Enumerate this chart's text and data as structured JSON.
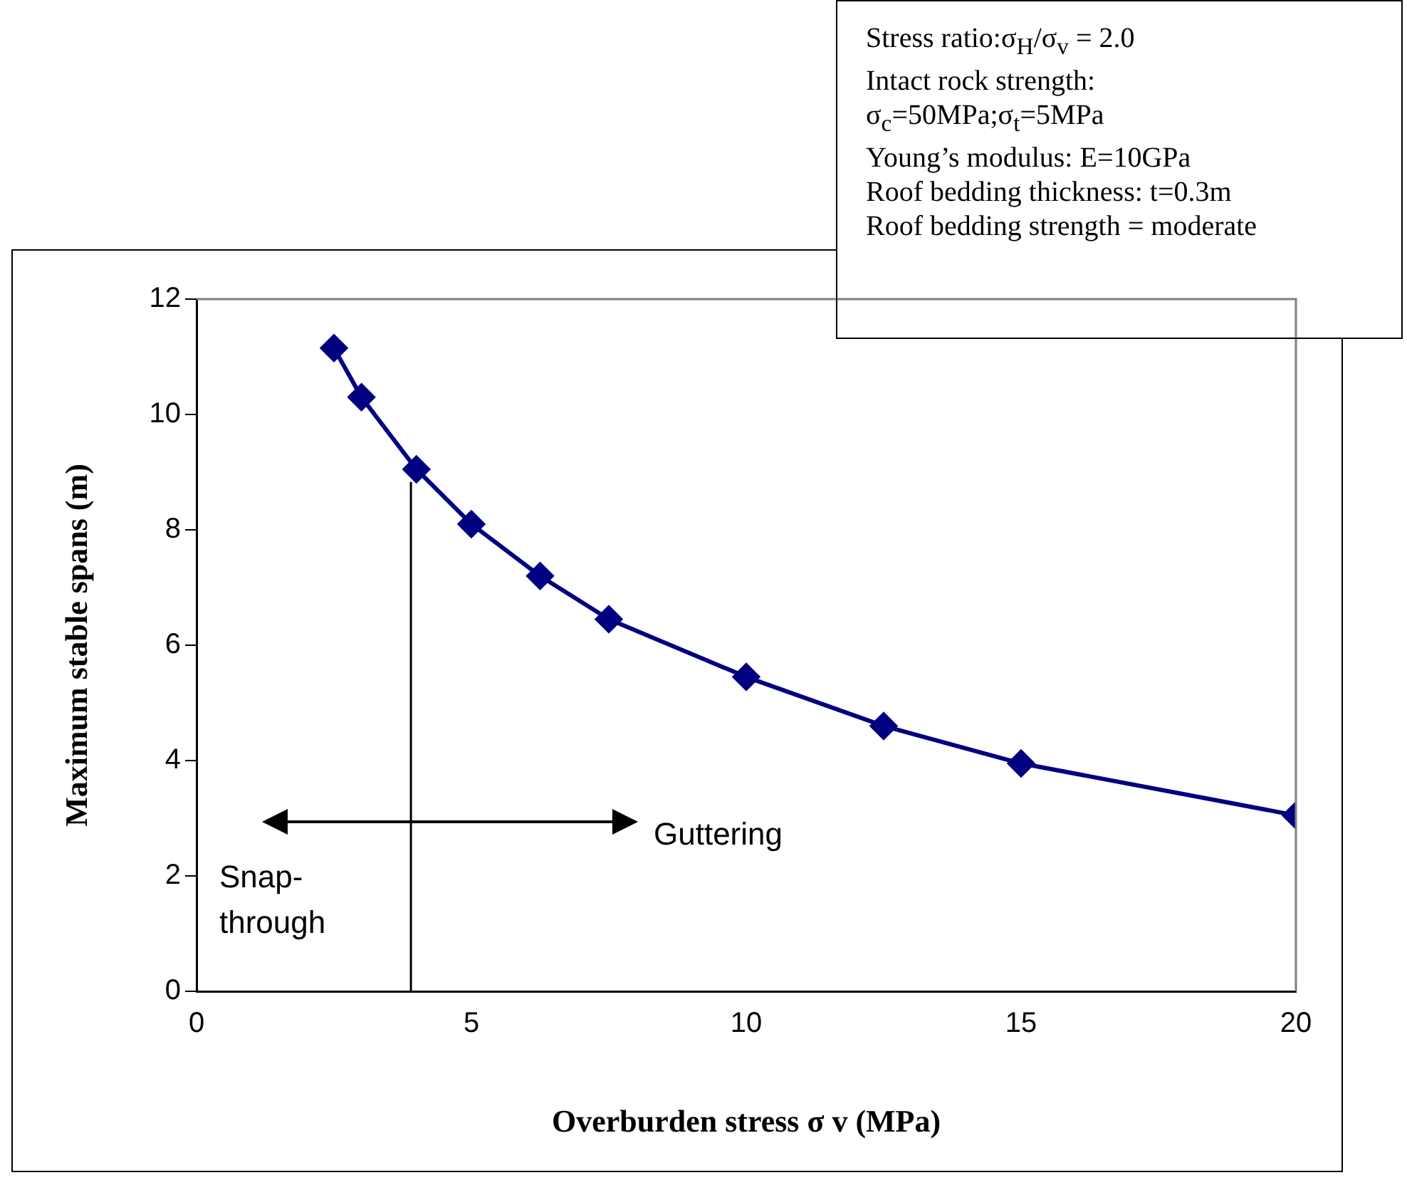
{
  "chart_data": {
    "type": "line",
    "xlabel": "Overburden stress σ v (MPa)",
    "ylabel": "Maximum stable spans (m)",
    "x": [
      2.5,
      3,
      4,
      5,
      6.25,
      7.5,
      10,
      12.5,
      15,
      20
    ],
    "series": [
      {
        "color": "#000080",
        "values": [
          11.15,
          10.3,
          9.05,
          8.1,
          7.2,
          6.45,
          5.45,
          4.6,
          3.95,
          3.05
        ]
      }
    ],
    "xlim": [
      0,
      20
    ],
    "xticks": [
      0,
      5,
      10,
      15,
      20
    ],
    "ylim": [
      0,
      12
    ],
    "yticks": [
      0,
      2,
      4,
      6,
      8,
      10,
      12
    ],
    "grid": false,
    "legend": false,
    "marker": "diamond",
    "line_style": "solid",
    "ref_lines": [
      {
        "axis": "x",
        "value": 3.9,
        "label": null,
        "color": "#000000"
      }
    ],
    "annotations": [
      "Stress ratio:σ$_{H}$/σ$_{v}$ = 2.0",
      "Intact rock strength:",
      "σ$_{c}$=50MPa;σ$_{t}$=5MPa",
      "Young’s modulus: E=10GPa",
      "Roof bedding thickness: t=0.3m",
      "Roof bedding strength = moderate",
      "Guttering",
      "Snap-through"
    ]
  }
}
